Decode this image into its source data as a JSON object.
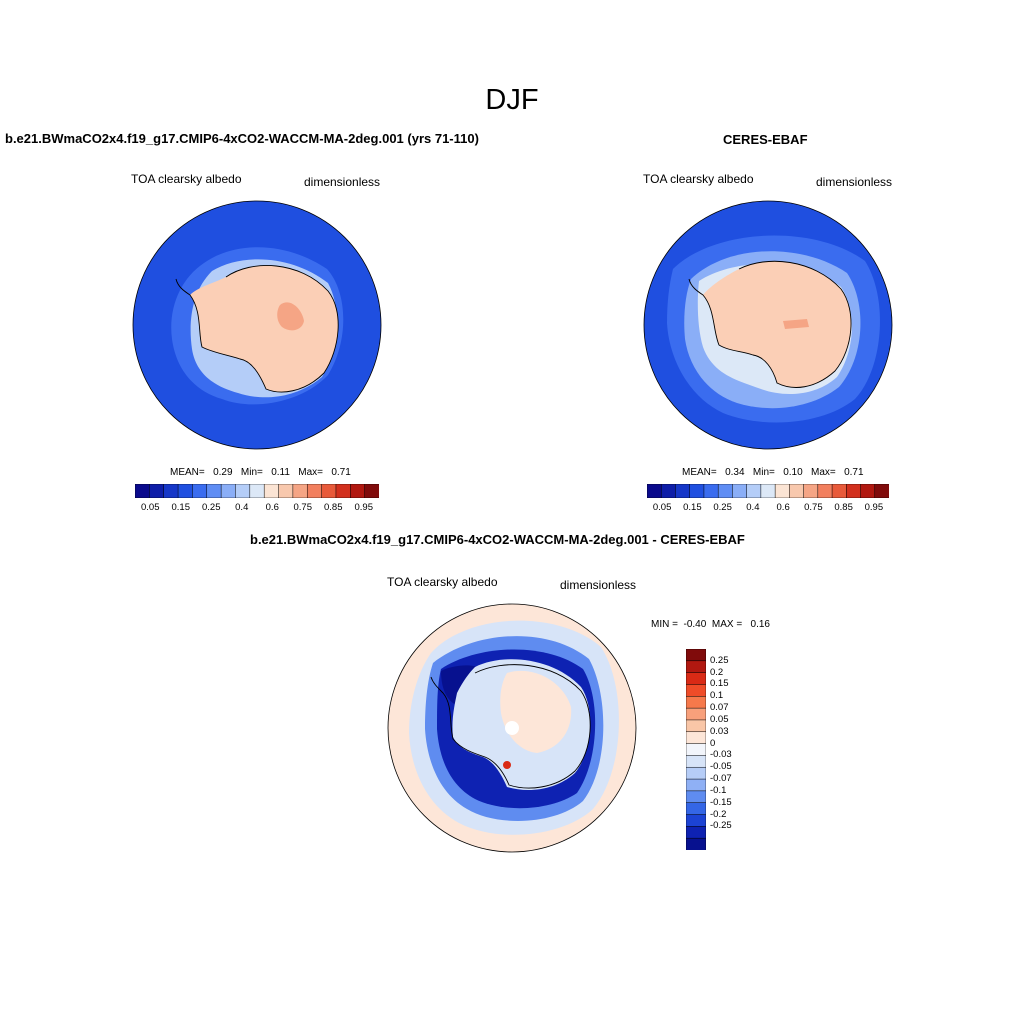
{
  "figure": {
    "season": "DJF"
  },
  "panels": {
    "model": {
      "title": "b.e21.BWmaCO2x4.f19_g17.CMIP6-4xCO2-WACCM-MA-2deg.001 (yrs 71-110)",
      "variable": "TOA clearsky albedo",
      "units": "dimensionless",
      "stats": {
        "mean_label": "MEAN=",
        "mean": "0.29",
        "min_label": "Min=",
        "min": "0.11",
        "max_label": "Max=",
        "max": "0.71"
      }
    },
    "obs": {
      "title": "CERES-EBAF",
      "variable": "TOA clearsky albedo",
      "units": "dimensionless",
      "stats": {
        "mean_label": "MEAN=",
        "mean": "0.34",
        "min_label": "Min=",
        "min": "0.10",
        "max_label": "Max=",
        "max": "0.71"
      }
    },
    "diff": {
      "title": "b.e21.BWmaCO2x4.f19_g17.CMIP6-4xCO2-WACCM-MA-2deg.001 - CERES-EBAF",
      "variable": "TOA clearsky albedo",
      "units": "dimensionless",
      "stats": {
        "min_label": "MIN =",
        "min": "-0.40",
        "max_label": "MAX =",
        "max": "0.16"
      }
    }
  },
  "colorbars": {
    "abs": {
      "colors": [
        "#0a0a8c",
        "#0e1ea8",
        "#1637c8",
        "#2050e0",
        "#3a6cef",
        "#5f8df4",
        "#8aaef7",
        "#b4cdf8",
        "#dce8f7",
        "#fbe4d4",
        "#f8c8ad",
        "#f5a585",
        "#f27f5e",
        "#e85a3a",
        "#d2301d",
        "#b11810",
        "#800b0b"
      ],
      "tick_labels": [
        "0.05",
        "0.15",
        "0.25",
        "0.4",
        "0.6",
        "0.75",
        "0.85",
        "0.95"
      ]
    },
    "diff": {
      "colors": [
        "#800b0b",
        "#b11810",
        "#d92a15",
        "#ef4c28",
        "#f6794b",
        "#f8a07b",
        "#f9c6a7",
        "#fde6d8",
        "#f2f5fb",
        "#d7e4f8",
        "#b6cdf7",
        "#8fb0f5",
        "#5f8cf0",
        "#3466e6",
        "#1c43d4",
        "#0e22b2",
        "#07118f"
      ],
      "tick_labels": [
        "0.25",
        "0.2",
        "0.15",
        "0.1",
        "0.07",
        "0.05",
        "0.03",
        "0",
        "-0.03",
        "-0.05",
        "-0.07",
        "-0.1",
        "-0.15",
        "-0.2",
        "-0.25"
      ]
    }
  },
  "map_colors": {
    "ocean_deep": "#1f4fe0",
    "ocean_mid": "#3a6cef",
    "ocean_light": "#8aaef7",
    "sea_ice": "#dce8f7",
    "ice_sheet": "#fbcfb6",
    "ice_sheet_high": "#f5a585",
    "diff_ocean": "#fde6d8",
    "diff_pale_blue": "#d7e4f8",
    "diff_mid_blue": "#5f8cf0",
    "diff_dark_blue": "#0e22b2",
    "diff_navy": "#07118f",
    "diff_red": "#d92a15"
  }
}
